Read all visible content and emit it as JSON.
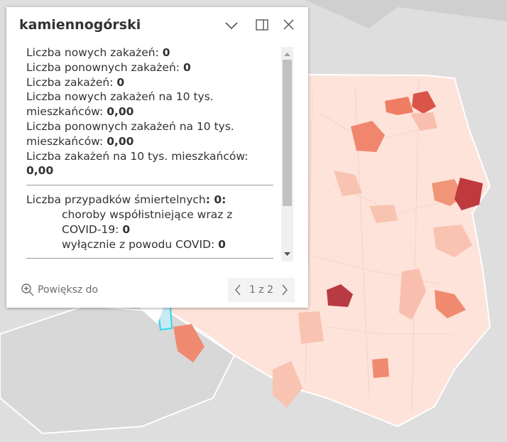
{
  "popup": {
    "title": "kamiennogórski",
    "fields": [
      {
        "label": "Liczba nowych zakażeń:",
        "value": "0"
      },
      {
        "label": "Liczba ponownych zakażeń:",
        "value": "0"
      },
      {
        "label": "Liczba zakażeń:",
        "value": "0"
      },
      {
        "label": "Liczba nowych zakażeń na 10 tys. mieszkańców:",
        "value": "0,00"
      },
      {
        "label": "Liczba ponownych zakażeń na 10 tys. mieszkańców:",
        "value": "0,00"
      },
      {
        "label": "Liczba zakażeń na 10 tys. mieszkańców:",
        "value": "0,00"
      }
    ],
    "deaths": {
      "label": "Liczba przypadków śmiertelnych",
      "value": ": 0:",
      "items": [
        {
          "label": "choroby współistniejące wraz z COVID-19:",
          "value": "0"
        },
        {
          "label": "wyłącznie z powodu COVID:",
          "value": "0"
        }
      ]
    },
    "footer": {
      "zoom": "Powiększ do",
      "pager": "1 z 2"
    }
  }
}
